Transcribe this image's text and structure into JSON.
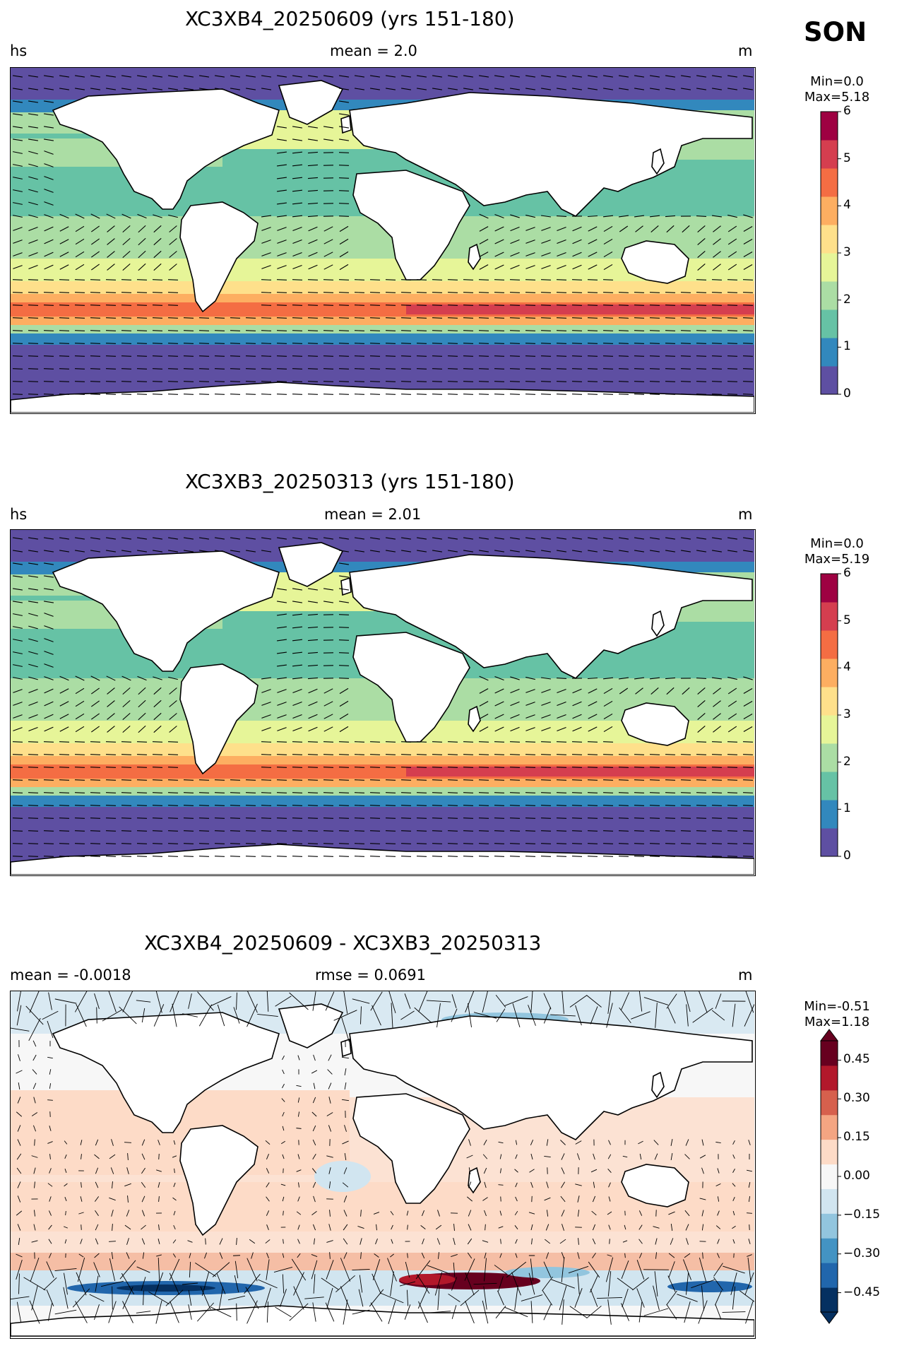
{
  "season": "SON",
  "panels": [
    {
      "title": "XC3XB4_20250609 (yrs 151-180)",
      "left_label": "hs",
      "center_label": "mean = 2.0",
      "right_label": "m",
      "min_label": "Min=0.0",
      "max_label": "Max=5.18",
      "colorbar_ticks": [
        "0",
        "1",
        "2",
        "3",
        "4",
        "5",
        "6"
      ],
      "colormap": "Spectral_r"
    },
    {
      "title": "XC3XB3_20250313 (yrs 151-180)",
      "left_label": "hs",
      "center_label": "mean = 2.01",
      "right_label": "m",
      "min_label": "Min=0.0",
      "max_label": "Max=5.19",
      "colorbar_ticks": [
        "0",
        "1",
        "2",
        "3",
        "4",
        "5",
        "6"
      ],
      "colormap": "Spectral_r"
    },
    {
      "title": "XC3XB4_20250609 - XC3XB3_20250313",
      "left_label": "mean = -0.0018",
      "center_label": "rmse = 0.0691",
      "right_label": "m",
      "min_label": "Min=-0.51",
      "max_label": "Max=1.18",
      "colorbar_ticks": [
        "−0.45",
        "−0.30",
        "−0.15",
        "0.00",
        "0.15",
        "0.30",
        "0.45"
      ],
      "colormap": "RdBu_r"
    }
  ],
  "colors": {
    "spectral": [
      "#5e4fa2",
      "#3288bd",
      "#66c2a5",
      "#abdda4",
      "#e6f598",
      "#fee08b",
      "#fdae61",
      "#f46d43",
      "#d53e4f",
      "#9e0142"
    ],
    "rdbu": [
      "#053061",
      "#2166ac",
      "#4393c3",
      "#92c5de",
      "#d1e5f0",
      "#f7f7f7",
      "#fddbc7",
      "#f4a582",
      "#d6604d",
      "#b2182b",
      "#67001f"
    ]
  }
}
